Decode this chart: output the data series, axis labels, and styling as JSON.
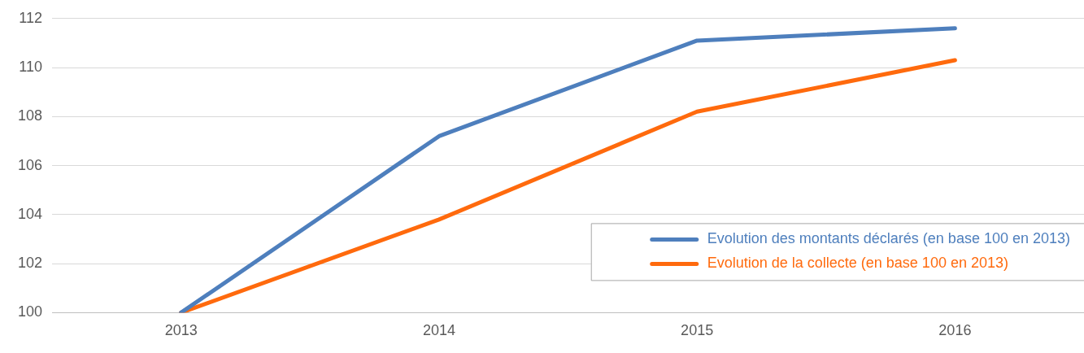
{
  "chart_data": {
    "type": "line",
    "categories": [
      "2013",
      "2014",
      "2015",
      "2016"
    ],
    "series": [
      {
        "name": "Evolution des montants déclarés (en base 100 en 2013)",
        "color": "#4e7fbd",
        "values": [
          100,
          107.2,
          111.1,
          111.6
        ]
      },
      {
        "name": "Evolution de la collecte (en base 100 en 2013)",
        "color": "#ff6a0d",
        "values": [
          100,
          103.8,
          108.2,
          110.3
        ]
      }
    ],
    "ylim": [
      100,
      112
    ],
    "yticks": [
      100,
      102,
      104,
      106,
      108,
      110,
      112
    ],
    "grid": "y",
    "legend": "bottom right",
    "marker": "none",
    "line_style": "solid"
  }
}
